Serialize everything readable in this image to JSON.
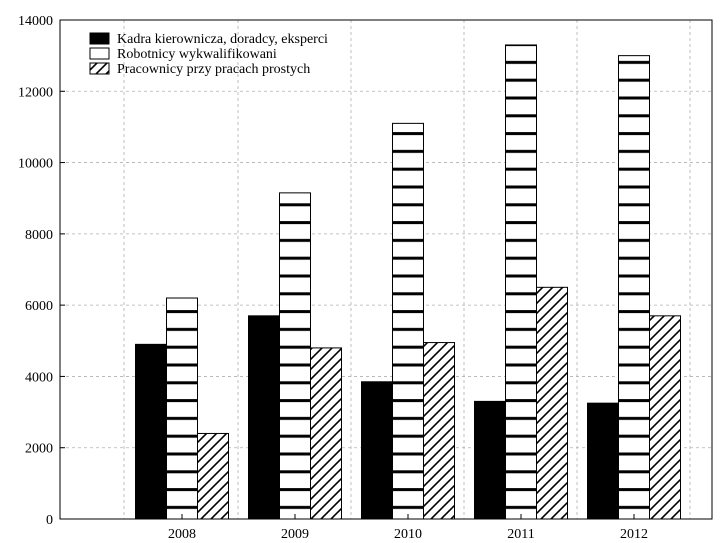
{
  "chart_data": {
    "type": "bar",
    "categories": [
      "2008",
      "2009",
      "2010",
      "2011",
      "2012"
    ],
    "series": [
      {
        "name": "Kadra kierownicza, doradcy, eksperci",
        "values": [
          4900,
          5700,
          3850,
          3300,
          3250
        ],
        "pattern": "solid"
      },
      {
        "name": "Robotnicy wykwalifikowani",
        "values": [
          6200,
          9150,
          11100,
          13300,
          13000
        ],
        "pattern": "horizontal-lines"
      },
      {
        "name": "Pracownicy przy pracach prostych",
        "values": [
          2400,
          4800,
          4950,
          6500,
          5700
        ],
        "pattern": "diagonal-hatch"
      }
    ],
    "ylim": [
      0,
      14000
    ],
    "yticks": [
      "0",
      "2000",
      "4000",
      "6000",
      "8000",
      "10000",
      "12000",
      "14000"
    ],
    "title": "",
    "xlabel": "",
    "ylabel": "",
    "grid": true,
    "legend": "top-left",
    "colors": {
      "bar_fill": "#000000",
      "background": "#ffffff",
      "grid": "#b0b0b0"
    }
  }
}
